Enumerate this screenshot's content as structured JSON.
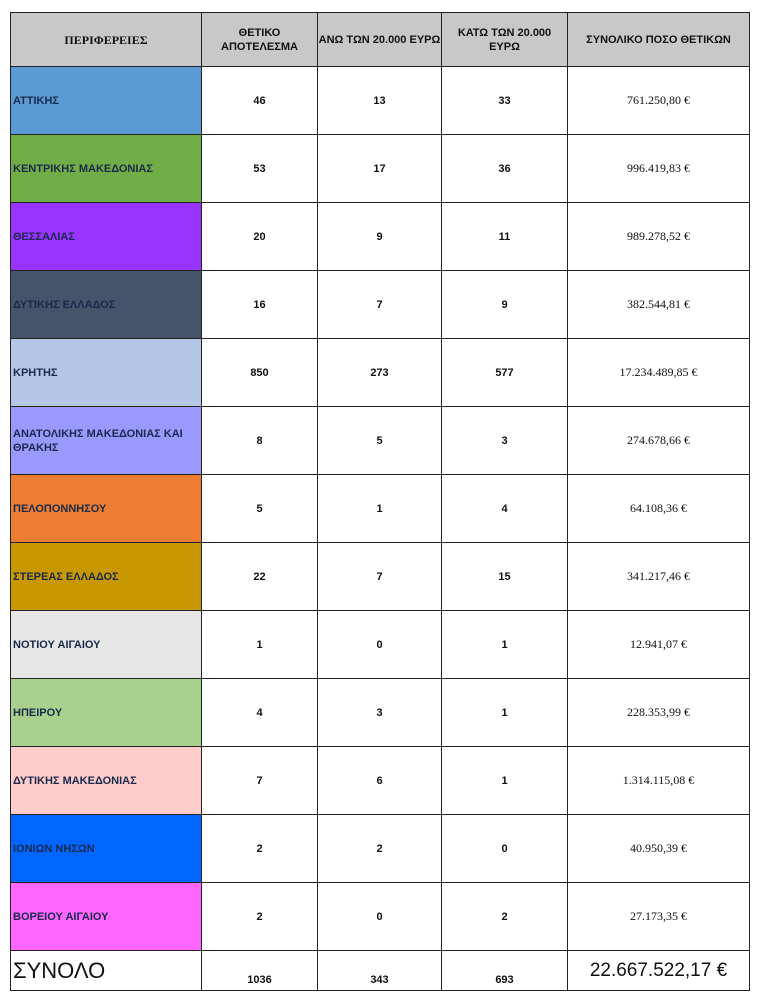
{
  "headers": [
    "ΠΕΡΙΦΕΡΕΙΕΣ",
    "ΘΕΤΙΚΟ ΑΠΟΤΕΛΕΣΜΑ",
    "ΑΝΩ ΤΩΝ 20.000 ΕΥΡΩ",
    "ΚΑΤΩ ΤΩΝ 20.000 ΕΥΡΩ",
    "ΣΥΝΟΛΙΚΟ ΠΟΣΟ ΘΕΤΙΚΩΝ"
  ],
  "rows": [
    {
      "region": "ΑΤΤΙΚΗΣ",
      "positive": "46",
      "above": "13",
      "below": "33",
      "amount": "761.250,80 €",
      "color": "#5b9bd5"
    },
    {
      "region": "ΚΕΝΤΡΙΚΗΣ  ΜΑΚΕΔΟΝΙΑΣ",
      "positive": "53",
      "above": "17",
      "below": "36",
      "amount": "996.419,83 €",
      "color": "#70ad47"
    },
    {
      "region": "ΘΕΣΣΑΛΙΑΣ",
      "positive": "20",
      "above": "9",
      "below": "11",
      "amount": "989.278,52 €",
      "color": "#9933ff"
    },
    {
      "region": "ΔΥΤΙΚΗΣ ΕΛΛΑΔΟΣ",
      "positive": "16",
      "above": "7",
      "below": "9",
      "amount": "382.544,81 €",
      "color": "#44546a"
    },
    {
      "region": "ΚΡΗΤΗΣ",
      "positive": "850",
      "above": "273",
      "below": "577",
      "amount": "17.234.489,85 €",
      "color": "#b4c7e7"
    },
    {
      "region": "ΑΝΑΤΟΛΙΚΗΣ ΜΑΚΕΔΟΝΙΑΣ ΚΑΙ ΘΡΑΚΗΣ",
      "positive": "8",
      "above": "5",
      "below": "3",
      "amount": "274.678,66 €",
      "color": "#9999ff"
    },
    {
      "region": "ΠΕΛΟΠΟΝΝΗΣΟΥ",
      "positive": "5",
      "above": "1",
      "below": "4",
      "amount": "64.108,36 €",
      "color": "#ed7d31"
    },
    {
      "region": "ΣΤΕΡΕΑΣ ΕΛΛΑΔΟΣ",
      "positive": "22",
      "above": "7",
      "below": "15",
      "amount": "341.217,46 €",
      "color": "#c99700"
    },
    {
      "region": "ΝΟΤΙΟΥ ΑΙΓΑΙΟΥ",
      "positive": "1",
      "above": "0",
      "below": "1",
      "amount": "12.941,07 €",
      "color": "#e7e6e6"
    },
    {
      "region": "ΗΠΕΙΡΟΥ",
      "positive": "4",
      "above": "3",
      "below": "1",
      "amount": "228.353,99 €",
      "color": "#a9d18e"
    },
    {
      "region": "ΔΥΤΙΚΗΣ ΜΑΚΕΔΟΝΙΑΣ",
      "positive": "7",
      "above": "6",
      "below": "1",
      "amount": "1.314.115,08 €",
      "color": "#ffcccc"
    },
    {
      "region": "ΙΟΝΙΩΝ ΝΗΣΩΝ",
      "positive": "2",
      "above": "2",
      "below": "0",
      "amount": "40.950,39 €",
      "color": "#0066ff"
    },
    {
      "region": "ΒΟΡΕΙΟΥ ΑΙΓΑΙΟΥ",
      "positive": "2",
      "above": "0",
      "below": "2",
      "amount": "27.173,35 €",
      "color": "#ff66ff"
    }
  ],
  "total": {
    "label": "ΣΥΝΟΛΟ",
    "positive": "1036",
    "above": "343",
    "below": "693",
    "amount": "22.667.522,17 €"
  }
}
